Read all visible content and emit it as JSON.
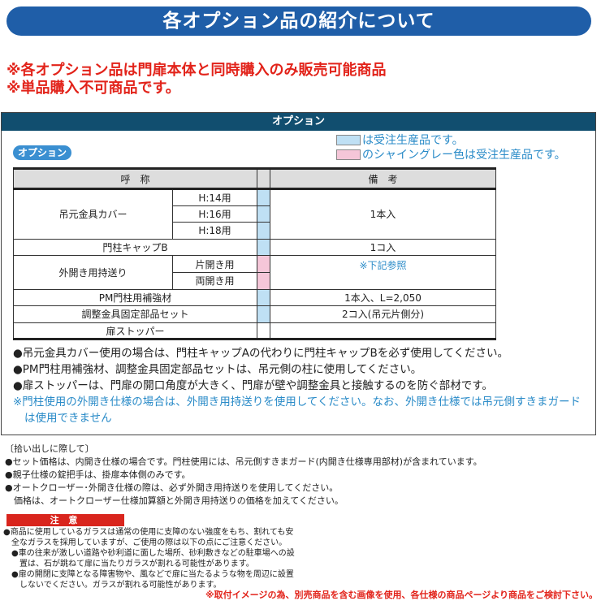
{
  "title": "各オプション品の紹介について",
  "red_notes": [
    "※各オプション品は門扉本体と同時購入のみ販売可能商品",
    "※単品購入不可商品です。"
  ],
  "section": {
    "header": "オプション",
    "pill": "オプション",
    "legend": [
      {
        "color": "#bfe0f4",
        "text": "は受注生産品です。"
      },
      {
        "color": "#f5c6d8",
        "text": "のシャイングレー色は受注生産品です。"
      }
    ],
    "table": {
      "headers": [
        "呼　称",
        "備　考"
      ],
      "rows": {
        "cover": "吊元金具カバー",
        "h14": "H:14用",
        "h16": "H:16用",
        "h18": "H:18用",
        "cover_note": "1本入",
        "capb": "門柱キャップB",
        "capb_note": "1コ入",
        "soto": "外開き用持送り",
        "kata": "片開き用",
        "ryo": "両開き用",
        "soto_note": "※下記参照",
        "pm": "PM門柱用補強材",
        "pm_note": "1本入、L=2,050",
        "chosei": "調整金具固定部品セット",
        "chosei_note": "2コ入(吊元片側分)",
        "stopper": "扉ストッパー",
        "stopper_note": ""
      }
    },
    "bullets": [
      "●吊元金具カバー使用の場合は、門柱キャップAの代わりに門柱キャップBを必ず使用してください。",
      "●PM門柱用補強材、調整金具固定部品セットは、吊元側の柱に使用してください。",
      "●扉ストッパーは、門扉の開口角度が大きく、門扉が壁や調整金具と接触するのを防ぐ部材です。"
    ],
    "blue_note": [
      "※門柱使用の外開き仕様の場合は、外開き用持送りを使用してください。なお、外開き仕様では吊元側すきまガード",
      "は使用できません"
    ]
  },
  "pickup": [
    "〔拾い出しに際して〕",
    "●セット価格は、内開き仕様の場合です。門柱使用には、吊元側すきまガード(内開き仕様専用部材)が含まれています。",
    "●親子仕様の錠把手は、掛扉本体側のみです。",
    "●オートクローザー･外開き仕様の際は、必ず外開き用持送りを使用してください。",
    "　価格は、オートクローザー仕様加算額と外開き用持送りの価格を加えてください。"
  ],
  "caution": {
    "label": "注 意",
    "lines": [
      "●商品に使用しているガラスは通常の使用に支障のない強度をもち、割れても安",
      "　全なガラスを採用していますが、ご使用の際は以下の点にご注意ください。",
      "　●車の往来が激しい道路や砂利道に面した場所、砂利敷きなどの駐車場への設",
      "　　置は、石が跳ねて扉に当たりガラスが割れる可能性があります。",
      "　●扉の開閉に支障となる障害物や、風などで扉に当たるような物を周辺に設置",
      "　　しないでください。ガラスが割れる可能性があります。"
    ]
  },
  "footer": "※取付イメージの為、別売商品を含む画像を使用、各仕様の商品ページより商品をご検討下さい。"
}
